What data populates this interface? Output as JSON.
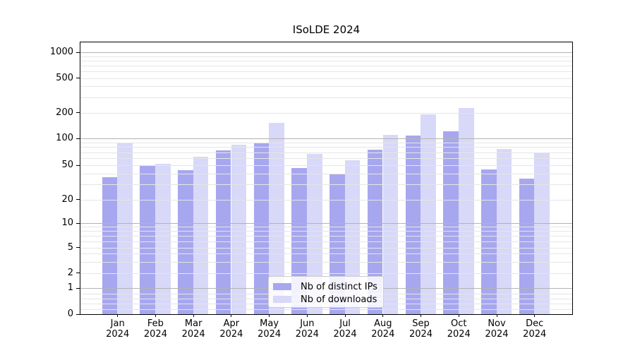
{
  "title": "ISoLDE 2024",
  "chart_data": {
    "type": "bar",
    "title": "ISoLDE 2024",
    "categories": [
      "Jan",
      "Feb",
      "Mar",
      "Apr",
      "May",
      "Jun",
      "Jul",
      "Aug",
      "Sep",
      "Oct",
      "Nov",
      "Dec"
    ],
    "category_year": "2024",
    "series": [
      {
        "name": "Nb of distinct IPs",
        "color": "#a7a7ef",
        "values": [
          36,
          49,
          44,
          74,
          88,
          46,
          40,
          75,
          107,
          121,
          45,
          35
        ]
      },
      {
        "name": "Nb of downloads",
        "color": "#d8d8f8",
        "values": [
          89,
          52,
          62,
          85,
          152,
          67,
          57,
          110,
          192,
          225,
          76,
          70
        ]
      }
    ],
    "yscale": "symlog",
    "yticks": [
      0,
      1,
      2,
      5,
      10,
      20,
      50,
      100,
      200,
      500,
      1000
    ],
    "ylim": [
      0,
      1300
    ],
    "grid": true,
    "grid_which": "both",
    "legend_position": "lower center"
  },
  "colors": {
    "bar_ips": "#a7a7ef",
    "bar_downloads": "#d8d8f8",
    "grid_major": "#b3b3b3",
    "grid_minor": "#e5e5e5",
    "axis": "#000000",
    "legend_border": "#cccccc"
  }
}
